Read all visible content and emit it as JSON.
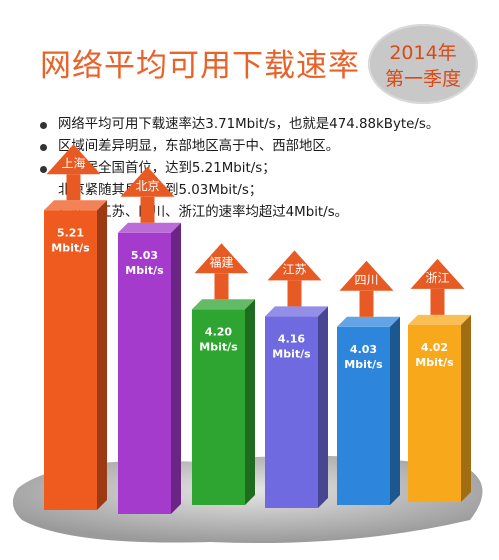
{
  "header": {
    "title": "网络平均可用下载速率",
    "badge_line1": "2014年",
    "badge_line2": "第一季度"
  },
  "bullets": [
    {
      "lines": [
        "网络平均可用下载速率达3.71Mbit/s，也就是474.88kByte/s。"
      ]
    },
    {
      "lines": [
        "区域间差异明显，东部地区高于中、西部地区。"
      ]
    },
    {
      "lines": [
        "上海居全国首位，达到5.21Mbit/s；",
        "北京紧随其后，达到5.03Mbit/s；",
        "福建、江苏、四川、浙江的速率均超过4Mbit/s。"
      ]
    }
  ],
  "chart_data": {
    "type": "bar",
    "categories": [
      "上海",
      "北京",
      "福建",
      "江苏",
      "四川",
      "浙江"
    ],
    "values": [
      5.21,
      5.03,
      4.2,
      4.16,
      4.03,
      4.02
    ],
    "value_labels": [
      "5.21",
      "5.03",
      "4.20",
      "4.16",
      "4.03",
      "4.02"
    ],
    "unit": "Mbit/s",
    "colors": [
      "#ef5a1e",
      "#a53bcc",
      "#2fa531",
      "#6f6ae0",
      "#2d86dc",
      "#f7a81b"
    ],
    "arrow_color": "#e85a23",
    "title": "",
    "xlabel": "",
    "ylabel": ""
  }
}
